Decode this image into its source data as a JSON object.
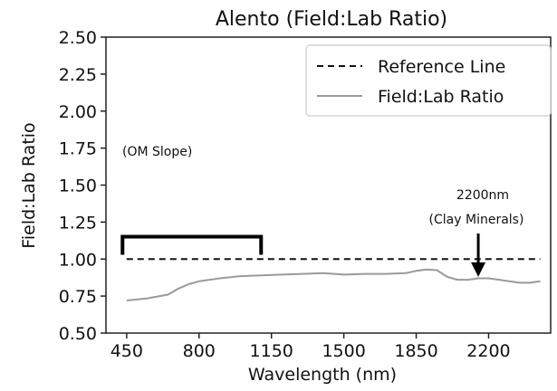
{
  "chart_data": {
    "type": "line",
    "title": "Alento (Field:Lab Ratio)",
    "xlabel": "Wavelength (nm)",
    "ylabel": "Field:Lab Ratio",
    "xlim": [
      350,
      2500
    ],
    "ylim": [
      0.5,
      2.5
    ],
    "x_ticks": [
      450,
      800,
      1150,
      1500,
      1850,
      2200
    ],
    "y_ticks": [
      0.5,
      0.75,
      1.0,
      1.25,
      1.5,
      1.75,
      2.0,
      2.25,
      2.5
    ],
    "y_tick_labels": [
      "0.50",
      "0.75",
      "1.00",
      "1.25",
      "1.50",
      "1.75",
      "2.00",
      "2.25",
      "2.50"
    ],
    "grid": false,
    "legend_position": "top-right",
    "series": [
      {
        "name": "Reference Line",
        "style": "dashed",
        "color": "#111111",
        "x": [
          450,
          2450
        ],
        "y": [
          1.0,
          1.0
        ]
      },
      {
        "name": "Field:Lab Ratio",
        "style": "solid",
        "color": "#9a9a9a",
        "x": [
          450,
          550,
          650,
          700,
          750,
          800,
          900,
          1000,
          1100,
          1200,
          1300,
          1400,
          1500,
          1600,
          1700,
          1800,
          1850,
          1900,
          1950,
          2000,
          2050,
          2100,
          2150,
          2200,
          2250,
          2300,
          2350,
          2400,
          2450
        ],
        "y": [
          0.72,
          0.735,
          0.76,
          0.8,
          0.83,
          0.85,
          0.87,
          0.885,
          0.89,
          0.895,
          0.9,
          0.905,
          0.895,
          0.9,
          0.9,
          0.905,
          0.92,
          0.93,
          0.925,
          0.88,
          0.86,
          0.86,
          0.87,
          0.87,
          0.86,
          0.85,
          0.84,
          0.84,
          0.85
        ]
      }
    ],
    "annotations": [
      {
        "text": "(OM Slope)",
        "type": "bracket",
        "x_range": [
          430,
          1100
        ],
        "y": 1.2
      },
      {
        "text": "2200nm",
        "text2": "(Clay Minerals)",
        "type": "arrow",
        "x": 2150,
        "y": 0.88
      }
    ]
  }
}
